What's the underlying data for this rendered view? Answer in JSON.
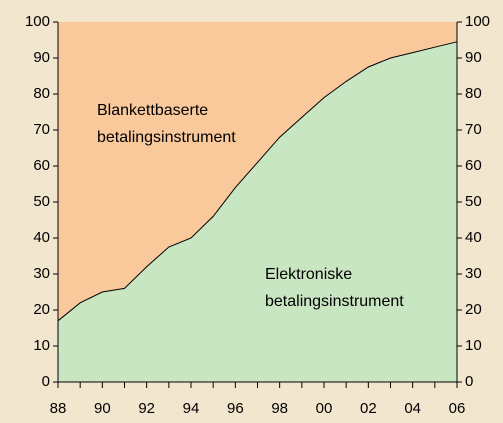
{
  "chart_data": {
    "type": "stacked_area",
    "categories": [
      "88",
      null,
      "90",
      null,
      "92",
      null,
      "94",
      null,
      "96",
      null,
      "98",
      null,
      "00",
      null,
      "02",
      null,
      "04",
      null,
      "06"
    ],
    "series": [
      {
        "name": "Elektroniske betalingsinstrument",
        "color": "#c9e6c2",
        "values": [
          17,
          22,
          25,
          26,
          32,
          37.5,
          40,
          46,
          54,
          61,
          68,
          73.5,
          79,
          83.5,
          87.5,
          90,
          91.5,
          93,
          94.5
        ]
      },
      {
        "name": "Blankettbaserte betalingsinstrument",
        "color": "#f9c89b",
        "values": [
          83,
          78,
          75,
          74,
          68,
          62.5,
          60,
          54,
          46,
          39,
          32,
          26.5,
          21,
          16.5,
          12.5,
          10,
          8.5,
          7,
          5.5
        ]
      }
    ],
    "annotations": [
      {
        "lines": [
          "Blankettbaserte",
          "betalingsinstrument"
        ]
      },
      {
        "lines": [
          "Elektroniske",
          "betalingsinstrument"
        ]
      }
    ],
    "ylim": [
      0,
      100
    ],
    "yticks": [
      0,
      10,
      20,
      30,
      40,
      50,
      60,
      70,
      80,
      90,
      100
    ],
    "y2lim": [
      0,
      100
    ],
    "y2ticks": [
      0,
      10,
      20,
      30,
      40,
      50,
      60,
      70,
      80,
      90,
      100
    ]
  }
}
